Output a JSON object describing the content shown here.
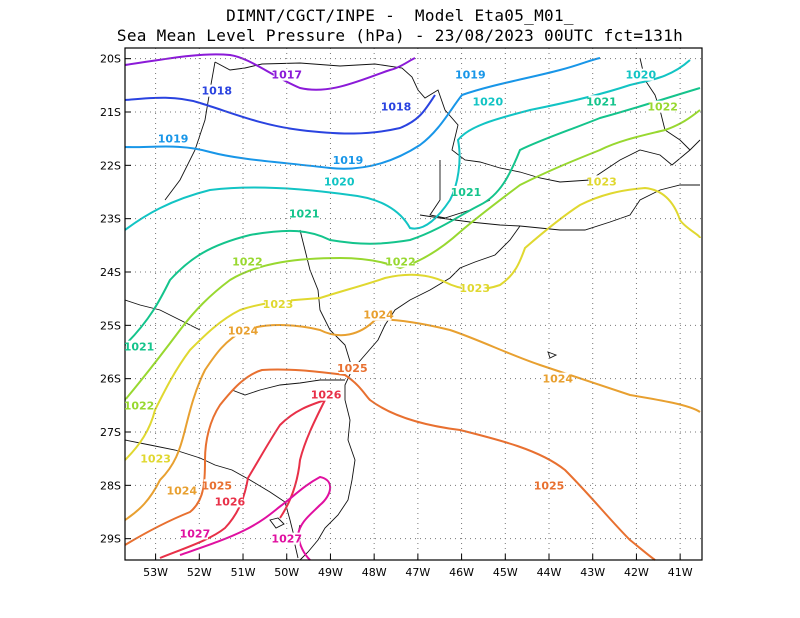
{
  "header": {
    "line1": "DIMNT/CGCT/INPE -  Model Eta05_M01_",
    "line2": "Sea Mean Level Pressure (hPa) - 23/08/2023 00UTC fct=131h"
  },
  "chart_data": {
    "type": "contour",
    "variable": "Sea Mean Level Pressure",
    "units": "hPa",
    "model": "Eta05_M01_",
    "run": "23/08/2023 00UTC",
    "forecast_hour": 131,
    "lon_range": [
      -53.7,
      -40.5
    ],
    "lat_range": [
      -29.4,
      -19.8
    ],
    "lon_ticks": [
      "53W",
      "52W",
      "51W",
      "50W",
      "49W",
      "48W",
      "47W",
      "46W",
      "45W",
      "44W",
      "43W",
      "42W",
      "41W"
    ],
    "lat_ticks": [
      "20S",
      "21S",
      "22S",
      "23S",
      "24S",
      "25S",
      "26S",
      "27S",
      "28S",
      "29S"
    ],
    "contour_labels": [
      {
        "text": "1017",
        "lon": -50.0,
        "lat": -20.3
      },
      {
        "text": "1018",
        "lon": -51.6,
        "lat": -20.6
      },
      {
        "text": "1018",
        "lon": -47.5,
        "lat": -20.9
      },
      {
        "text": "1019",
        "lon": -52.6,
        "lat": -21.5
      },
      {
        "text": "1019",
        "lon": -48.6,
        "lat": -21.9
      },
      {
        "text": "1019",
        "lon": -45.8,
        "lat": -20.3
      },
      {
        "text": "1020",
        "lon": -48.8,
        "lat": -22.3
      },
      {
        "text": "1020",
        "lon": -45.4,
        "lat": -20.8
      },
      {
        "text": "1020",
        "lon": -41.9,
        "lat": -20.3
      },
      {
        "text": "1021",
        "lon": -49.6,
        "lat": -22.9
      },
      {
        "text": "1021",
        "lon": -45.9,
        "lat": -22.5
      },
      {
        "text": "1021",
        "lon": -42.8,
        "lat": -20.8
      },
      {
        "text": "1021",
        "lon": -53.6,
        "lat": -25.4
      },
      {
        "text": "1022",
        "lon": -50.9,
        "lat": -23.8
      },
      {
        "text": "1022",
        "lon": -47.4,
        "lat": -23.8
      },
      {
        "text": "1022",
        "lon": -41.4,
        "lat": -20.9
      },
      {
        "text": "1022",
        "lon": -53.6,
        "lat": -26.5
      },
      {
        "text": "1023",
        "lon": -50.2,
        "lat": -24.6
      },
      {
        "text": "1023",
        "lon": -45.7,
        "lat": -24.3
      },
      {
        "text": "1023",
        "lon": -42.8,
        "lat": -22.3
      },
      {
        "text": "1023",
        "lon": -53.0,
        "lat": -27.5
      },
      {
        "text": "1024",
        "lon": -51.0,
        "lat": -25.1
      },
      {
        "text": "1024",
        "lon": -47.9,
        "lat": -24.8
      },
      {
        "text": "1024",
        "lon": -43.8,
        "lat": -26.0
      },
      {
        "text": "1024",
        "lon": -52.4,
        "lat": -28.1
      },
      {
        "text": "1025",
        "lon": -48.5,
        "lat": -25.8
      },
      {
        "text": "1025",
        "lon": -51.6,
        "lat": -28.0
      },
      {
        "text": "1025",
        "lon": -44.0,
        "lat": -28.0
      },
      {
        "text": "1026",
        "lon": -49.1,
        "lat": -26.3
      },
      {
        "text": "1026",
        "lon": -51.3,
        "lat": -28.3
      },
      {
        "text": "1027",
        "lon": -52.1,
        "lat": -28.9
      },
      {
        "text": "1027",
        "lon": -50.0,
        "lat": -29.0
      }
    ],
    "contour_colors": {
      "1017": "#8b1ad8",
      "1018": "#2a43e0",
      "1019": "#1896e8",
      "1020": "#12c4c4",
      "1021": "#14c48c",
      "1022": "#98d830",
      "1023": "#e0d830",
      "1024": "#e8a030",
      "1025": "#e87030",
      "1026": "#e83048",
      "1027": "#e010a0"
    },
    "grid": true
  }
}
